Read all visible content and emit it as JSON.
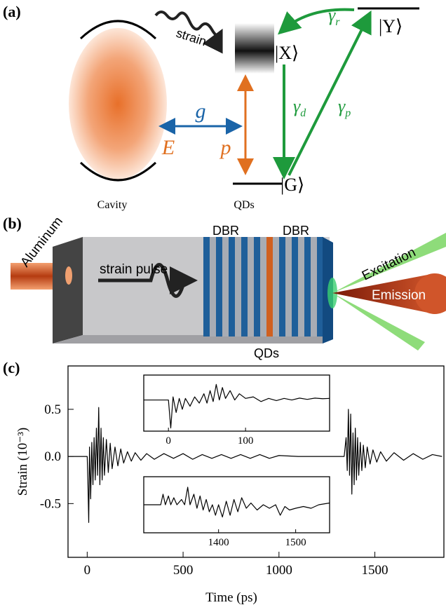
{
  "panel_labels": [
    "(a)",
    "(b)",
    "(c)"
  ],
  "diagram_a": {
    "strain": "strain",
    "ket_x": "|X⟩",
    "ket_y": "|Y⟩",
    "ket_g": "|G⟩",
    "gamma_r": {
      "symbol": "γ",
      "sub": "r"
    },
    "gamma_d": {
      "symbol": "γ",
      "sub": "d"
    },
    "gamma_p": {
      "symbol": "γ",
      "sub": "p"
    },
    "g": "g",
    "E": "E",
    "p": "p",
    "cavity": "Cavity",
    "qds": "QDs"
  },
  "diagram_b": {
    "aluminum": "Aluminum",
    "strain_pulse": "strain pulse",
    "dbr_left": "DBR",
    "dbr_right": "DBR",
    "excitation": "Excitation",
    "emission": "Emission",
    "qds": "QDs"
  },
  "chart_data": [
    {
      "type": "line",
      "xlabel": "Time (ps)",
      "ylabel": "Strain (10⁻³)",
      "xlim": [
        -100,
        1860
      ],
      "ylim": [
        -1.07,
        0.96
      ],
      "xticks": [
        0,
        500,
        1000,
        1500
      ],
      "yticks": [
        -0.5,
        {
          "value": 0,
          "label": "0.0"
        },
        0.5
      ],
      "series": [
        {
          "color": "#000000",
          "x": [
            -100,
            0,
            4,
            8,
            12,
            18,
            24,
            30,
            36,
            42,
            48,
            54,
            60,
            66,
            72,
            78,
            84,
            90,
            100,
            110,
            120,
            130,
            145,
            160,
            175,
            190,
            210,
            230,
            250,
            280,
            310,
            350,
            400,
            450,
            500,
            550,
            600,
            650,
            700,
            750,
            800,
            850,
            900,
            950,
            1000,
            1100,
            1200,
            1340,
            1350,
            1356,
            1362,
            1368,
            1374,
            1380,
            1386,
            1392,
            1398,
            1404,
            1410,
            1416,
            1424,
            1432,
            1440,
            1450,
            1460,
            1475,
            1490,
            1510,
            1530,
            1560,
            1600,
            1650,
            1700,
            1750,
            1800,
            1850
          ],
          "values": [
            0,
            0,
            -0.3,
            -0.7,
            0.1,
            -0.45,
            0.15,
            -0.3,
            0.2,
            -0.25,
            0.3,
            -0.2,
            0.52,
            -0.3,
            0.3,
            -0.25,
            0.2,
            -0.2,
            0.18,
            -0.17,
            0.14,
            -0.13,
            0.1,
            -0.1,
            0.08,
            -0.07,
            0.05,
            -0.05,
            0.04,
            -0.04,
            0.03,
            -0.03,
            0.03,
            -0.02,
            0.03,
            -0.03,
            0.02,
            -0.02,
            0.02,
            -0.02,
            0.02,
            -0.02,
            0.02,
            -0.02,
            0.01,
            0,
            0,
            0,
            0.2,
            -0.15,
            0.5,
            -0.2,
            0.45,
            -0.4,
            0.25,
            -0.3,
            0.3,
            -0.25,
            0.2,
            -0.2,
            0.15,
            -0.15,
            0.12,
            -0.12,
            0.1,
            -0.08,
            0.07,
            -0.06,
            0.05,
            -0.05,
            0.04,
            -0.04,
            0.03,
            -0.03,
            0.02,
            0
          ]
        }
      ]
    },
    {
      "type": "line",
      "xlim": [
        -32,
        209
      ],
      "ylim": [
        -1,
        0.8
      ],
      "xticks": [
        0,
        100
      ],
      "series": [
        {
          "color": "#000000",
          "x": [
            -32,
            0,
            3,
            6,
            10,
            14,
            18,
            22,
            28,
            34,
            40,
            46,
            50,
            54,
            58,
            62,
            66,
            70,
            74,
            80,
            86,
            92,
            100,
            110,
            120,
            130,
            140,
            150,
            160,
            170,
            180,
            190,
            200,
            209
          ],
          "values": [
            0,
            0,
            -0.9,
            0.1,
            -0.4,
            0.05,
            -0.3,
            0.05,
            -0.2,
            0.1,
            -0.1,
            0.2,
            -0.1,
            0.3,
            -0.05,
            0.5,
            0,
            0.4,
            0.05,
            0.3,
            0,
            0.2,
            0.05,
            0.1,
            -0.05,
            0.05,
            -0.02,
            0.05,
            0,
            0.06,
            0.02,
            0.06,
            0.04,
            0.05
          ]
        }
      ]
    },
    {
      "type": "line",
      "xlim": [
        1303,
        1544
      ],
      "ylim": [
        -0.8,
        0.8
      ],
      "xticks": [
        1400,
        1500
      ],
      "series": [
        {
          "color": "#000000",
          "x": [
            1303,
            1325,
            1328,
            1331,
            1335,
            1338,
            1342,
            1346,
            1352,
            1356,
            1360,
            1363,
            1368,
            1372,
            1376,
            1380,
            1384,
            1388,
            1392,
            1396,
            1400,
            1405,
            1410,
            1415,
            1420,
            1425,
            1430,
            1436,
            1442,
            1450,
            1458,
            1466,
            1474,
            1480,
            1486,
            1492,
            1500,
            1510,
            1520,
            1530,
            1544
          ],
          "values": [
            0,
            0,
            0.3,
            0,
            0.25,
            0,
            0.2,
            0,
            0.15,
            0,
            0.5,
            0,
            0.3,
            -0.1,
            0.25,
            -0.15,
            0.15,
            -0.2,
            0,
            -0.3,
            0,
            -0.35,
            0.1,
            -0.3,
            0.15,
            -0.2,
            0.2,
            -0.1,
            0.05,
            -0.15,
            0,
            -0.1,
            0,
            -0.3,
            -0.05,
            -0.15,
            -0.1,
            -0.05,
            -0.1,
            0,
            0.05
          ]
        }
      ]
    }
  ]
}
